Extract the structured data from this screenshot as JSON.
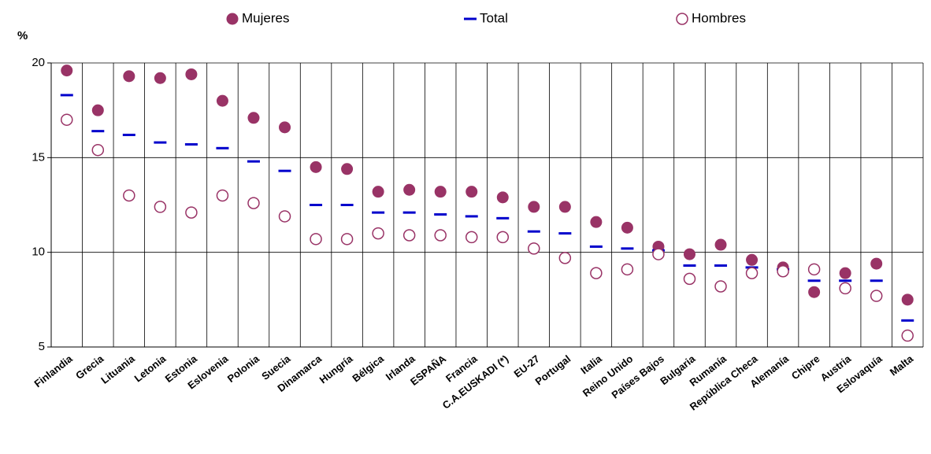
{
  "chart_data": {
    "type": "dot",
    "y_axis_label": "%",
    "categories": [
      "Finlandia",
      "Grecia",
      "Lituania",
      "Letonia",
      "Estonia",
      "Eslovenia",
      "Polonia",
      "Suecia",
      "Dinamarca",
      "Hungría",
      "Bélgica",
      "Irlanda",
      "ESPAÑA",
      "Francia",
      "C.A.EUSKADI (*)",
      "EU-27",
      "Portugal",
      "Italia",
      "Reino Unido",
      "Países Bajos",
      "Bulgaria",
      "Rumanía",
      "República Checa",
      "Alemanía",
      "Chipre",
      "Austria",
      "Eslovaquía",
      "Malta"
    ],
    "series": [
      {
        "name": "Mujeres",
        "color": "#993366",
        "marker": "filled-circle",
        "values": [
          19.6,
          17.5,
          19.3,
          19.2,
          19.4,
          18.0,
          17.1,
          16.6,
          14.5,
          14.4,
          13.2,
          13.3,
          13.2,
          13.2,
          12.9,
          12.4,
          12.4,
          11.6,
          11.3,
          10.3,
          9.9,
          10.4,
          9.6,
          9.2,
          7.9,
          8.9,
          9.4,
          7.5
        ]
      },
      {
        "name": "Total",
        "color": "#0000cc",
        "marker": "dash",
        "values": [
          18.3,
          16.4,
          16.2,
          15.8,
          15.7,
          15.5,
          14.8,
          14.3,
          12.5,
          12.5,
          12.1,
          12.1,
          12.0,
          11.9,
          11.8,
          11.1,
          11.0,
          10.3,
          10.2,
          10.1,
          9.3,
          9.3,
          9.2,
          9.1,
          8.5,
          8.5,
          8.5,
          6.4
        ]
      },
      {
        "name": "Hombres",
        "color": "#993366",
        "marker": "open-circle",
        "values": [
          17.0,
          15.4,
          13.0,
          12.4,
          12.1,
          13.0,
          12.6,
          11.9,
          10.7,
          10.7,
          11.0,
          10.9,
          10.9,
          10.8,
          10.8,
          10.2,
          9.7,
          8.9,
          9.1,
          9.9,
          8.6,
          8.2,
          8.9,
          9.0,
          9.1,
          8.1,
          7.7,
          5.6
        ]
      }
    ],
    "ylim": [
      5,
      20
    ],
    "yticks": [
      5,
      10,
      15,
      20
    ],
    "grid": true,
    "legend": "top"
  }
}
